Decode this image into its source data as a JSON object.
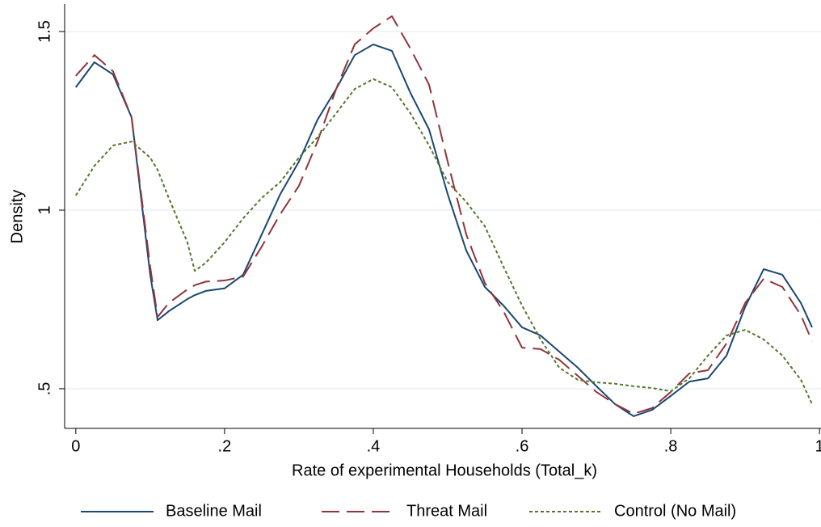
{
  "chart_data": {
    "type": "line",
    "xlabel": "Rate of experimental Households (Total_k)",
    "ylabel": "Density",
    "x": [
      0,
      0.025,
      0.05,
      0.075,
      0.1,
      0.11,
      0.125,
      0.15,
      0.16,
      0.175,
      0.2,
      0.225,
      0.25,
      0.275,
      0.3,
      0.325,
      0.35,
      0.375,
      0.4,
      0.425,
      0.45,
      0.475,
      0.5,
      0.525,
      0.55,
      0.575,
      0.6,
      0.625,
      0.65,
      0.675,
      0.7,
      0.725,
      0.75,
      0.775,
      0.8,
      0.825,
      0.85,
      0.875,
      0.9,
      0.925,
      0.95,
      0.975,
      0.99
    ],
    "series": [
      {
        "name": "Baseline Mail",
        "color": "#1a476f",
        "dash": "solid",
        "values": [
          1.344,
          1.414,
          1.38,
          1.26,
          0.82,
          0.692,
          0.717,
          0.751,
          0.762,
          0.774,
          0.781,
          0.819,
          0.932,
          1.045,
          1.136,
          1.253,
          1.339,
          1.434,
          1.464,
          1.446,
          1.328,
          1.226,
          1.045,
          0.887,
          0.785,
          0.733,
          0.672,
          0.649,
          0.604,
          0.559,
          0.507,
          0.457,
          0.423,
          0.441,
          0.48,
          0.52,
          0.529,
          0.593,
          0.729,
          0.835,
          0.819,
          0.74,
          0.672
        ]
      },
      {
        "name": "Threat Mail",
        "color": "#90353b",
        "dash": "long-dash",
        "values": [
          1.376,
          1.434,
          1.389,
          1.26,
          0.842,
          0.701,
          0.74,
          0.778,
          0.79,
          0.8,
          0.803,
          0.814,
          0.898,
          0.989,
          1.068,
          1.192,
          1.339,
          1.464,
          1.509,
          1.543,
          1.452,
          1.351,
          1.136,
          0.932,
          0.796,
          0.717,
          0.615,
          0.611,
          0.581,
          0.536,
          0.491,
          0.457,
          0.43,
          0.446,
          0.491,
          0.543,
          0.552,
          0.627,
          0.74,
          0.808,
          0.785,
          0.706,
          0.633
        ]
      },
      {
        "name": "Control (No Mail)",
        "color": "#55752f",
        "dash": "short-dash",
        "values": [
          1.041,
          1.124,
          1.181,
          1.192,
          1.147,
          1.113,
          1.034,
          0.91,
          0.83,
          0.853,
          0.91,
          0.977,
          1.034,
          1.079,
          1.147,
          1.204,
          1.271,
          1.339,
          1.367,
          1.344,
          1.271,
          1.181,
          1.079,
          1.023,
          0.955,
          0.842,
          0.733,
          0.638,
          0.559,
          0.525,
          0.518,
          0.514,
          0.507,
          0.502,
          0.493,
          0.529,
          0.593,
          0.649,
          0.665,
          0.638,
          0.593,
          0.525,
          0.457
        ]
      }
    ],
    "xlim": [
      -0.015,
      1.002
    ],
    "ylim": [
      0.389,
      1.577
    ],
    "xticks": [
      0,
      {
        "value": 0.2,
        "label": ".2"
      },
      {
        "value": 0.4,
        "label": ".4"
      },
      {
        "value": 0.6,
        "label": ".6"
      },
      {
        "value": 0.8,
        "label": ".8"
      },
      1
    ],
    "yticks": [
      {
        "value": 0.5,
        "label": ".5"
      },
      1,
      1.5
    ],
    "grid": true,
    "legend": "bottom"
  }
}
